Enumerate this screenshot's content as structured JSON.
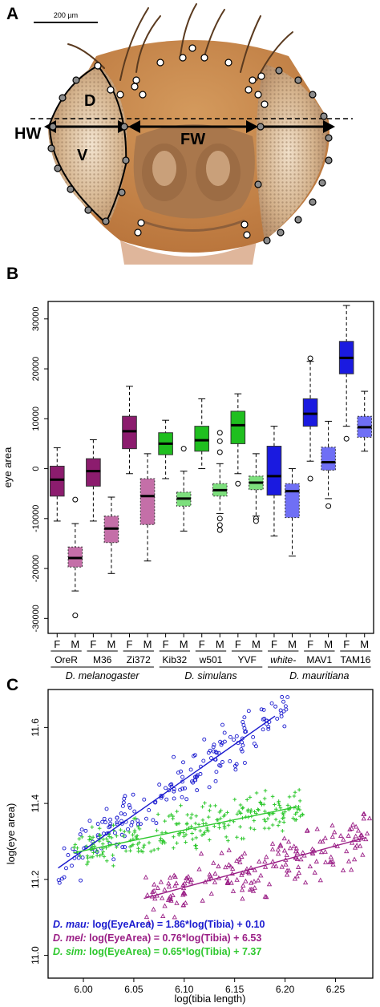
{
  "panels": {
    "a": "A",
    "b": "B",
    "c": "C"
  },
  "photo": {
    "scale_bar": "200 µm",
    "labels": {
      "dorsal": "D",
      "ventral": "V",
      "head_width": "HW",
      "face_width": "FW"
    }
  },
  "chart_data": [
    {
      "type": "box",
      "ylabel": "eye area",
      "ylim": [
        -33000,
        33500
      ],
      "yticks": [
        -30000,
        -20000,
        -10000,
        0,
        10000,
        20000,
        30000
      ],
      "sex_labels": [
        "F",
        "M"
      ],
      "strains": [
        "OreR",
        "M36",
        "Zi372",
        "Kib32",
        "w501",
        "YVF",
        "white-",
        "MAV1",
        "TAM16"
      ],
      "species": [
        {
          "name": "D. melanogaster",
          "strains": [
            0,
            1,
            2
          ]
        },
        {
          "name": "D. simulans",
          "strains": [
            3,
            4,
            5
          ]
        },
        {
          "name": "D. mauritiana",
          "strains": [
            6,
            7,
            8
          ]
        }
      ],
      "colors": {
        "mel_F": "#8c1c6e",
        "mel_M": "#c46fa8",
        "sim_F": "#1fbf1f",
        "sim_M": "#7ddf7d",
        "mau_F": "#1a1ae0",
        "mau_M": "#6f6ff5"
      },
      "boxes": [
        {
          "strain": 0,
          "sex": "F",
          "color": "mel_F",
          "lw": -10500,
          "q1": -5500,
          "med": -2200,
          "q3": 500,
          "uw": 4200,
          "out": []
        },
        {
          "strain": 0,
          "sex": "M",
          "color": "mel_M",
          "lw": -24500,
          "q1": -19700,
          "med": -17900,
          "q3": -15700,
          "uw": -11000,
          "out": [
            -6200,
            -29400
          ]
        },
        {
          "strain": 1,
          "sex": "F",
          "color": "mel_F",
          "lw": -10500,
          "q1": -3500,
          "med": -500,
          "q3": 2000,
          "uw": 5800,
          "out": []
        },
        {
          "strain": 1,
          "sex": "M",
          "color": "mel_M",
          "lw": -21000,
          "q1": -14800,
          "med": -12000,
          "q3": -9500,
          "uw": -5700,
          "out": []
        },
        {
          "strain": 2,
          "sex": "F",
          "color": "mel_F",
          "lw": -1000,
          "q1": 4000,
          "med": 7500,
          "q3": 10500,
          "uw": 16500,
          "out": []
        },
        {
          "strain": 2,
          "sex": "M",
          "color": "mel_M",
          "lw": -18500,
          "q1": -11200,
          "med": -5500,
          "q3": -2000,
          "uw": 3000,
          "out": []
        },
        {
          "strain": 3,
          "sex": "F",
          "color": "sim_F",
          "lw": -2000,
          "q1": 2800,
          "med": 5000,
          "q3": 7200,
          "uw": 9700,
          "out": []
        },
        {
          "strain": 3,
          "sex": "M",
          "color": "sim_M",
          "lw": -12500,
          "q1": -7500,
          "med": -6000,
          "q3": -4700,
          "uw": -500,
          "out": [
            4000
          ]
        },
        {
          "strain": 4,
          "sex": "F",
          "color": "sim_F",
          "lw": 0,
          "q1": 3500,
          "med": 5700,
          "q3": 8500,
          "uw": 14000,
          "out": []
        },
        {
          "strain": 4,
          "sex": "M",
          "color": "sim_M",
          "lw": -9000,
          "q1": -5500,
          "med": -4300,
          "q3": -3000,
          "uw": 1000,
          "out": [
            7200,
            5500,
            3300,
            -10000,
            -11300,
            -12300
          ]
        },
        {
          "strain": 5,
          "sex": "F",
          "color": "sim_F",
          "lw": -1000,
          "q1": 5000,
          "med": 8700,
          "q3": 11500,
          "uw": 15000,
          "out": [
            -3000
          ]
        },
        {
          "strain": 5,
          "sex": "M",
          "color": "sim_M",
          "lw": -9500,
          "q1": -4200,
          "med": -2800,
          "q3": -1500,
          "uw": 3000,
          "out": [
            -10000,
            -10500
          ]
        },
        {
          "strain": 6,
          "sex": "F",
          "color": "mau_F",
          "lw": -13500,
          "q1": -5300,
          "med": -1500,
          "q3": 4500,
          "uw": 8500,
          "out": []
        },
        {
          "strain": 6,
          "sex": "M",
          "color": "mau_M",
          "lw": -17500,
          "q1": -9800,
          "med": -4500,
          "q3": -3000,
          "uw": 0,
          "out": []
        },
        {
          "strain": 7,
          "sex": "F",
          "color": "mau_F",
          "lw": 1500,
          "q1": 8500,
          "med": 11000,
          "q3": 14000,
          "uw": 21500,
          "out": [
            22100,
            -2000
          ]
        },
        {
          "strain": 7,
          "sex": "M",
          "color": "mau_M",
          "lw": -6000,
          "q1": -300,
          "med": 1300,
          "q3": 4300,
          "uw": 9500,
          "out": [
            -7500
          ]
        },
        {
          "strain": 8,
          "sex": "F",
          "color": "mau_F",
          "lw": 8500,
          "q1": 19000,
          "med": 22200,
          "q3": 25500,
          "uw": 32700,
          "out": [
            6000
          ]
        },
        {
          "strain": 8,
          "sex": "M",
          "color": "mau_M",
          "lw": 3500,
          "q1": 6300,
          "med": 8300,
          "q3": 10500,
          "uw": 15500,
          "out": []
        }
      ]
    },
    {
      "type": "scatter",
      "xlabel": "log(tibia length)",
      "ylabel": "log(eye area)",
      "xlim": [
        5.965,
        6.287
      ],
      "ylim": [
        10.94,
        11.7
      ],
      "xticks": [
        "6.00",
        "6.05",
        "6.10",
        "6.15",
        "6.20",
        "6.25"
      ],
      "yticks": [
        "11.0",
        "11.2",
        "11.4",
        "11.6"
      ],
      "series": [
        {
          "key": "mau",
          "color": "#1a1acf",
          "marker": "circle",
          "x_range": [
            5.975,
            6.205
          ],
          "y_center": 11.41,
          "spread": 0.09,
          "n": 190,
          "fit": {
            "x": [
              5.975,
              6.19
            ],
            "y": [
              11.23,
              11.63
            ]
          },
          "equation_species": "D. mau:",
          "equation_text": "log(EyeArea) = 1.86*log(Tibia) + 0.10"
        },
        {
          "key": "mel",
          "color": "#9a1f86",
          "marker": "triangle",
          "x_range": [
            6.06,
            6.285
          ],
          "y_center": 11.23,
          "spread": 0.09,
          "n": 200,
          "fit": {
            "x": [
              6.06,
              6.28
            ],
            "y": [
              11.15,
              11.31
            ]
          },
          "equation_species": "D. mel:",
          "equation_text": "log(EyeArea) = 0.76*log(Tibia) + 6.53"
        },
        {
          "key": "sim",
          "color": "#2ec82e",
          "marker": "cross",
          "x_range": [
            5.99,
            6.22
          ],
          "y_center": 11.34,
          "spread": 0.07,
          "n": 260,
          "fit": {
            "x": [
              5.99,
              6.21
            ],
            "y": [
              11.27,
              11.39
            ]
          },
          "equation_species": "D. sim:",
          "equation_text": "log(EyeArea) = 0.65*log(Tibia) + 7.37"
        }
      ]
    }
  ]
}
